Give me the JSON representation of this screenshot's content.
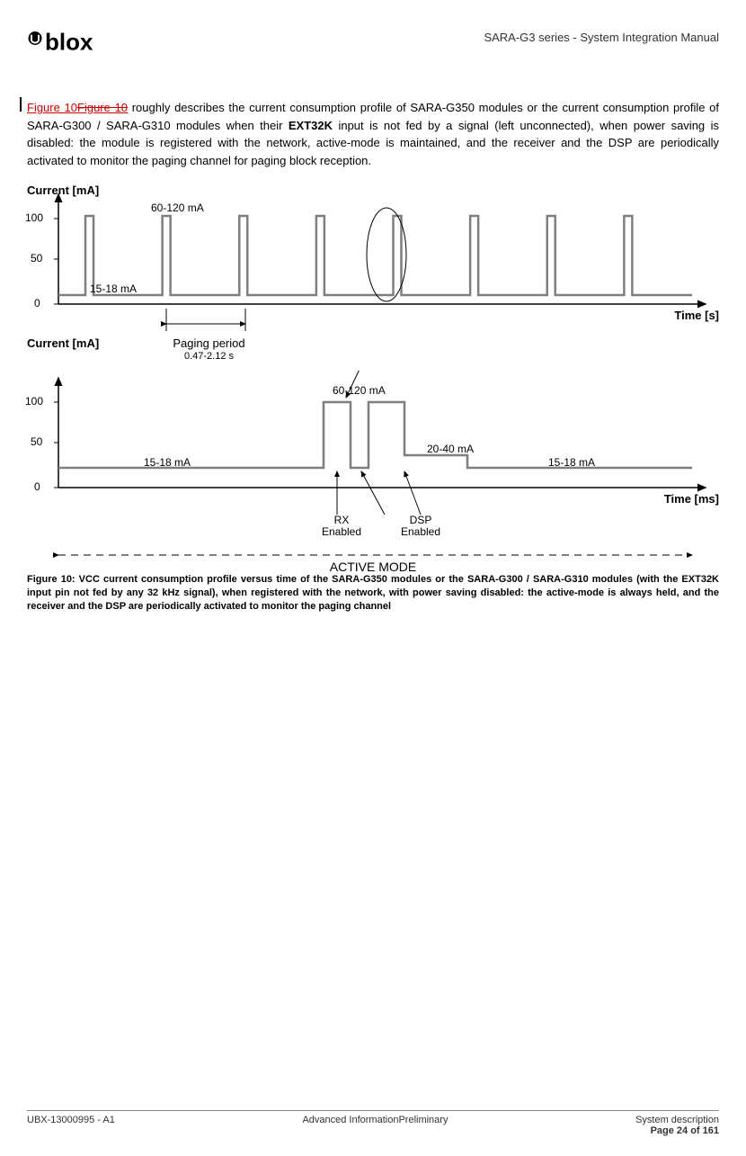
{
  "header": {
    "doc_title": "SARA-G3 series - System Integration Manual"
  },
  "paragraph": {
    "figref_new": "Figure 10",
    "figref_old": "Figure 10",
    "text_after_ref": " roughly describes the current consumption profile of SARA-G350 modules or the current consumption profile of SARA-G300 / SARA-G310 modules when their ",
    "bold1": "EXT32K",
    "text_after_bold": " input is not fed by a signal (left unconnected), when power saving is disabled: the module is registered with the network, active-mode is maintained, and the receiver and the DSP are periodically activated to monitor the paging channel for paging block reception."
  },
  "chart_top": {
    "ylabel": "Current [mA]",
    "xlabel": "Time [s]",
    "yticks": [
      "0",
      "50",
      "100"
    ],
    "peak_label": "60-120 mA",
    "base_label": "15-18 mA",
    "paging_label": "Paging period",
    "paging_sub": "0.47-2.12 s",
    "n_pulses": 8,
    "baseline_y": 110,
    "peak_y": 22,
    "line_color": "#7f7f7f",
    "axis_color": "#000000",
    "bg": "#ffffff"
  },
  "chart_bottom": {
    "ylabel": "Current [mA]",
    "xlabel": "Time [ms]",
    "yticks": [
      "0",
      "50",
      "100"
    ],
    "left_base": "15-18 mA",
    "right_base": "15-18 mA",
    "peak_label": "60-120 mA",
    "mid_label": "20-40 mA",
    "rx_label": "RX\nEnabled",
    "dsp_label": "DSP\nEnabled",
    "mode_label": "ACTIVE MODE",
    "line_color": "#7f7f7f",
    "axis_color": "#000000"
  },
  "caption": "Figure 10: VCC current consumption profile versus time of the SARA-G350 modules or the SARA-G300 / SARA-G310 modules (with the EXT32K input pin not fed by any 32 kHz signal), when registered with the network, with power saving disabled: the active-mode is always held, and the receiver and the DSP are periodically activated to monitor the paging channel",
  "footer": {
    "left": "UBX-13000995 - A1",
    "center": "Advanced InformationPreliminary",
    "right_top": "System description",
    "right_bottom": "Page 24 of 161"
  }
}
